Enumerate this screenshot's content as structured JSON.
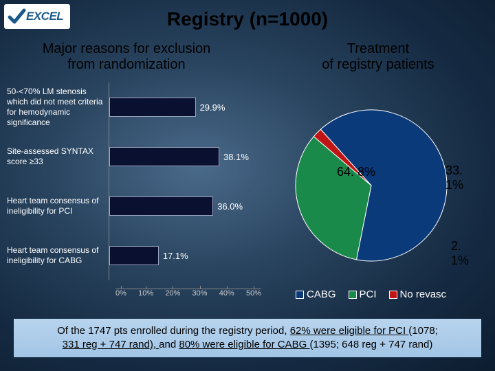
{
  "logo_text": "EXCEL",
  "title": "Registry (n=1000)",
  "subtitle_left_l1": "Major reasons for exclusion",
  "subtitle_left_l2": "from randomization",
  "subtitle_right_l1": "Treatment",
  "subtitle_right_l2": "of registry patients",
  "bar_chart": {
    "type": "bar-horizontal",
    "bar_color": "#0a1030",
    "bar_border": "#9aa5c0",
    "value_fontsize": 13,
    "label_fontsize": 12,
    "label_color": "#ffffff",
    "axis_max_pct": 50,
    "axis_ticks": [
      "0%",
      "10%",
      "20%",
      "30%",
      "40%",
      "50%"
    ],
    "items": [
      {
        "label": "50-<70% LM stenosis which did not meet criteria for hemodynamic significance",
        "value": 29.9,
        "display": "29.9%"
      },
      {
        "label": "Site-assessed SYNTAX score ≥33",
        "value": 38.1,
        "display": "38.1%"
      },
      {
        "label": "Heart team consensus of ineligibility for PCI",
        "value": 36.0,
        "display": "36.0%"
      },
      {
        "label": "Heart team consensus of ineligibility for CABG",
        "value": 17.1,
        "display": "17.1%"
      }
    ]
  },
  "pie_chart": {
    "type": "pie",
    "background": "transparent",
    "slices": [
      {
        "name": "CABG",
        "value": 64.8,
        "display": "64. 8%",
        "color": "#0a3a7a"
      },
      {
        "name": "PCI",
        "value": 33.1,
        "display": "33. 1%",
        "color": "#1a8a4a"
      },
      {
        "name": "No revasc",
        "value": 2.1,
        "display": "2. 1%",
        "color": "#c01515"
      }
    ],
    "label_fontsize": 18,
    "label_color": "#000000",
    "start_angle_deg": -132
  },
  "legend": {
    "box_border": "#ffffff",
    "items": [
      {
        "label": "CABG",
        "color": "#0a3a7a"
      },
      {
        "label": "PCI",
        "color": "#1a8a4a"
      },
      {
        "label": "No revasc",
        "color": "#c01515"
      }
    ]
  },
  "footer_line1_a": "Of the 1747 pts enrolled during the registry period, ",
  "footer_line1_b": "62% were eligible for PCI ",
  "footer_line1_c": "(1078;",
  "footer_line2_a": "331 reg + 747 rand), ",
  "footer_line2_b": "and ",
  "footer_line2_c": "80% were eligible for CABG ",
  "footer_line2_d": "(1395; 648 reg + 747 rand)"
}
